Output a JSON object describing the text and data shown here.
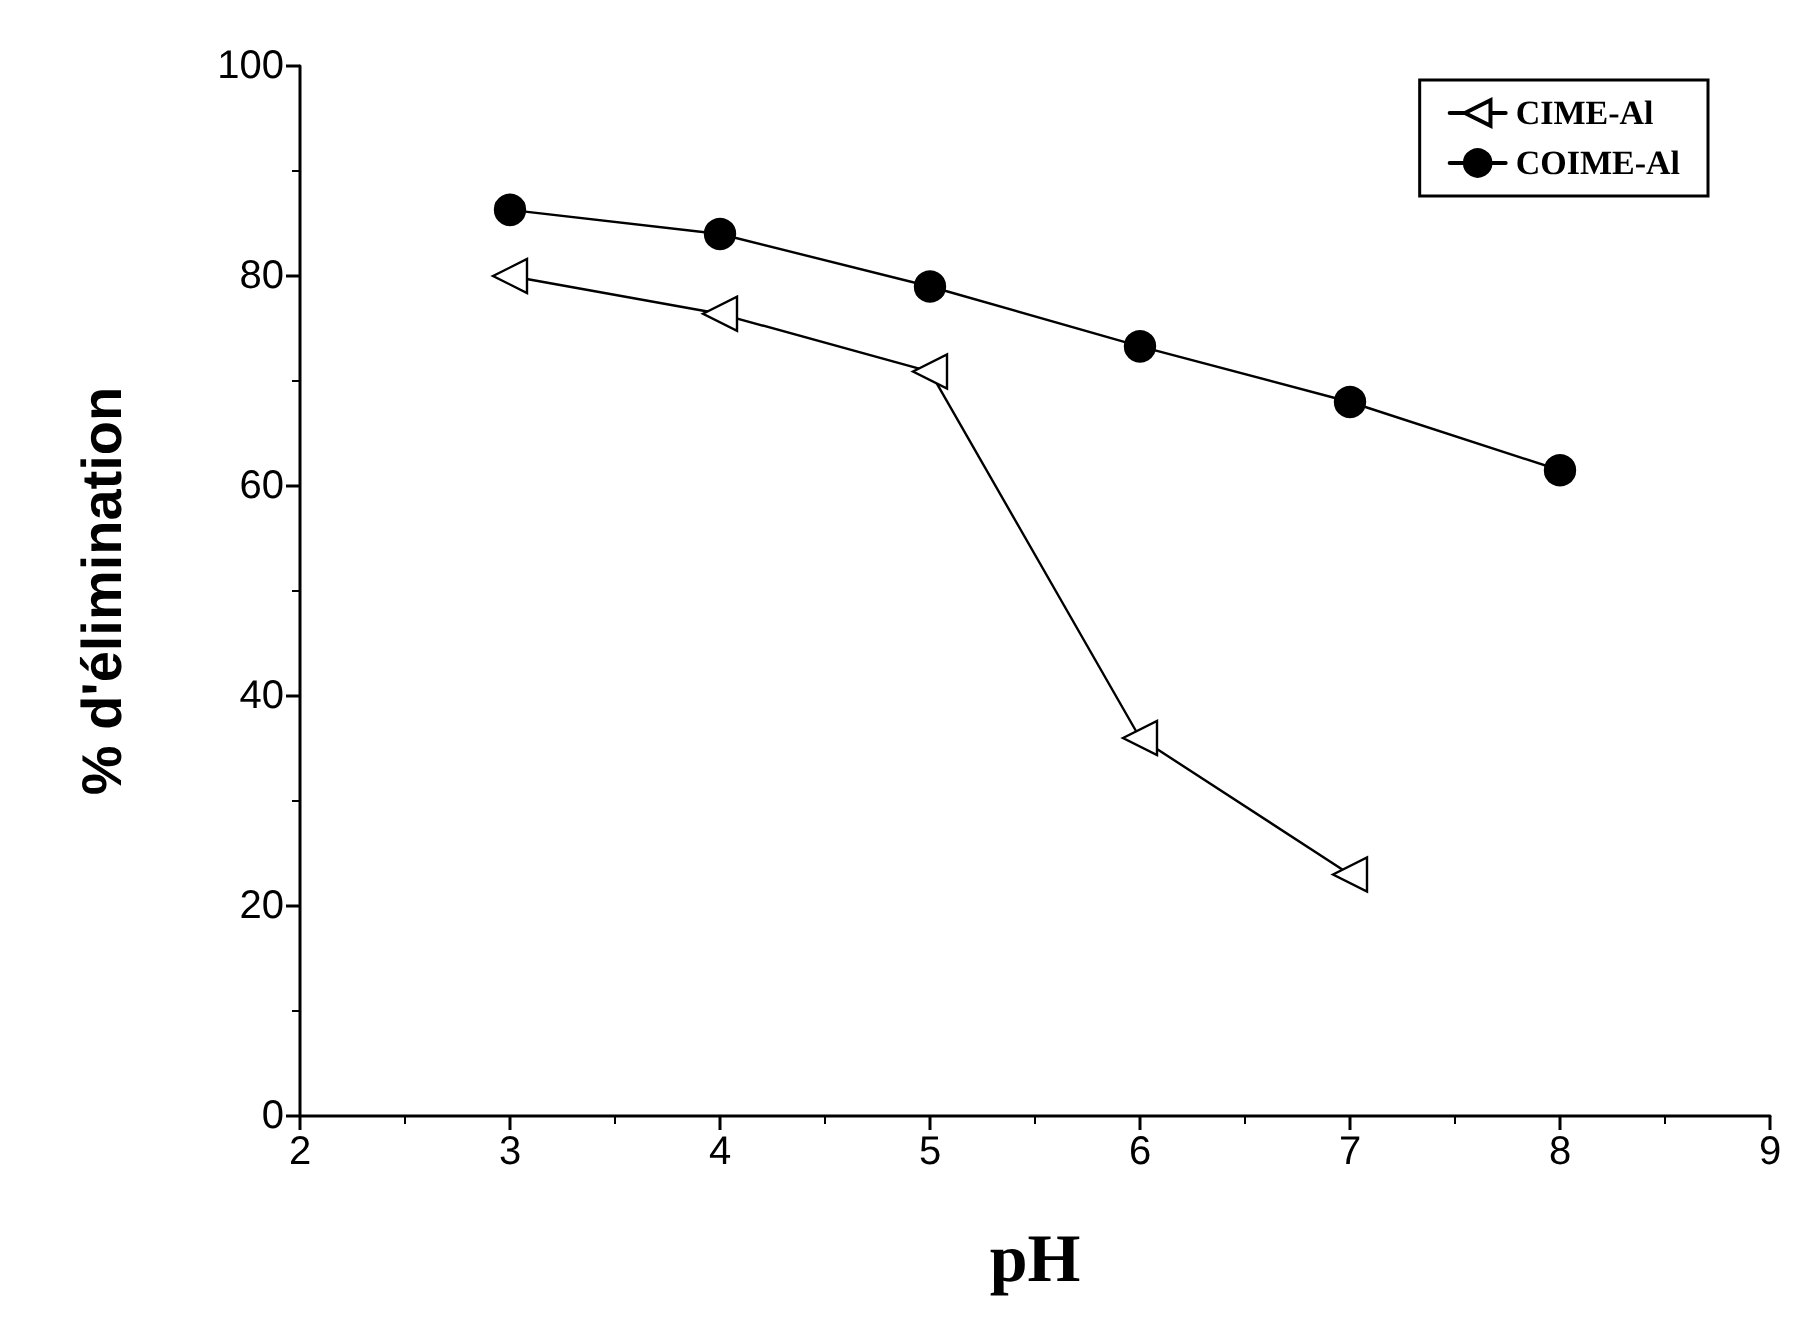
{
  "chart_data": {
    "type": "line",
    "xlabel": "pH",
    "ylabel": "% d'élimination",
    "xlim": [
      2,
      9
    ],
    "xticks": [
      2,
      3,
      4,
      5,
      6,
      7,
      8,
      9
    ],
    "ylim": [
      0,
      100
    ],
    "yticks": [
      0,
      20,
      40,
      60,
      80,
      100
    ],
    "grid": false,
    "legend": "top right",
    "line_style": "solid",
    "series": [
      {
        "name": "CIME-Al",
        "color": "#000000",
        "marker": "triangle",
        "x": [
          3,
          4,
          5,
          6,
          7
        ],
        "values": [
          80,
          76.4,
          70.9,
          36,
          23
        ]
      },
      {
        "name": "COIME-Al",
        "color": "#000000",
        "marker": "circle",
        "x": [
          3,
          4,
          5,
          6,
          7,
          8
        ],
        "values": [
          86.3,
          84,
          79,
          73.3,
          68,
          61.5
        ]
      }
    ]
  }
}
